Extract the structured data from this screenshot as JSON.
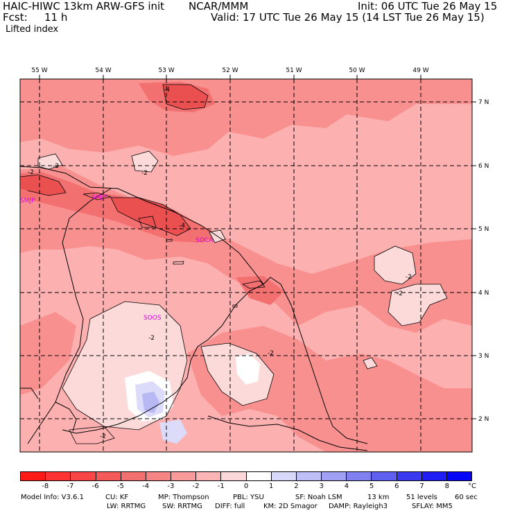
{
  "header": {
    "model_line": "HAIC-HIWC 13km ARW-GFS init",
    "org": "NCAR/MMM",
    "fcst_label": "Fcst:",
    "fcst_value": "11 h",
    "init_line": "Init: 06 UTC Tue 26 May 15",
    "valid_line": "Valid: 17 UTC Tue 26 May 15 (14 LST Tue 26 May 15)",
    "field_name": "Lifted index"
  },
  "map": {
    "lon_labels": [
      "55 W",
      "54 W",
      "53 W",
      "52 W",
      "51 W",
      "50 W",
      "49 W"
    ],
    "lat_labels": [
      "7 N",
      "6 N",
      "5 N",
      "4 N",
      "3 N",
      "2 N"
    ],
    "stations": [
      "SMJP",
      "SMJP",
      "SOCA",
      "SOOS"
    ],
    "contour_labels": [
      "-4",
      "-2",
      "-2",
      "-4",
      "-2",
      "-2",
      "-2",
      "-2",
      "-2",
      "-2"
    ],
    "colors": {
      "base": "#fcb0b0",
      "mid": "#f99090",
      "dark": "#f27070",
      "darker": "#ea5050",
      "light": "#fcdada",
      "blue_light": "#dcdcfa",
      "blue_mid": "#b8b8f4"
    }
  },
  "colorbar": {
    "labels": [
      "-8",
      "-7",
      "-6",
      "-5",
      "-4",
      "-3",
      "-2",
      "-1",
      "0",
      "1",
      "2",
      "3",
      "4",
      "5",
      "6",
      "7",
      "8"
    ],
    "unit": "°C",
    "colors": [
      "#ff1a1a",
      "#ff3333",
      "#f94545",
      "#f45a5a",
      "#f27070",
      "#f58585",
      "#f99b9b",
      "#fcb5b5",
      "#fdd8d8",
      "#ffffff",
      "#d8d8fb",
      "#bfbff7",
      "#a0a0f4",
      "#8080f0",
      "#5f5ff0",
      "#3a3af0",
      "#1f1ff5",
      "#0505fa"
    ]
  },
  "footer": {
    "model_info": "Model Info: V3.6.1",
    "cu": "CU: KF",
    "mp": "MP: Thompson",
    "pbl": "PBL: YSU",
    "sf": "SF: Noah LSM",
    "res": "13 km",
    "levels": "51 levels",
    "dt": "60 sec",
    "lw": "LW: RRTMG",
    "sw": "SW: RRTMG",
    "diff": "DIFF: full",
    "km": "KM: 2D Smagor",
    "damp": "DAMP: Rayleigh3",
    "sflay": "SFLAY: MM5"
  }
}
